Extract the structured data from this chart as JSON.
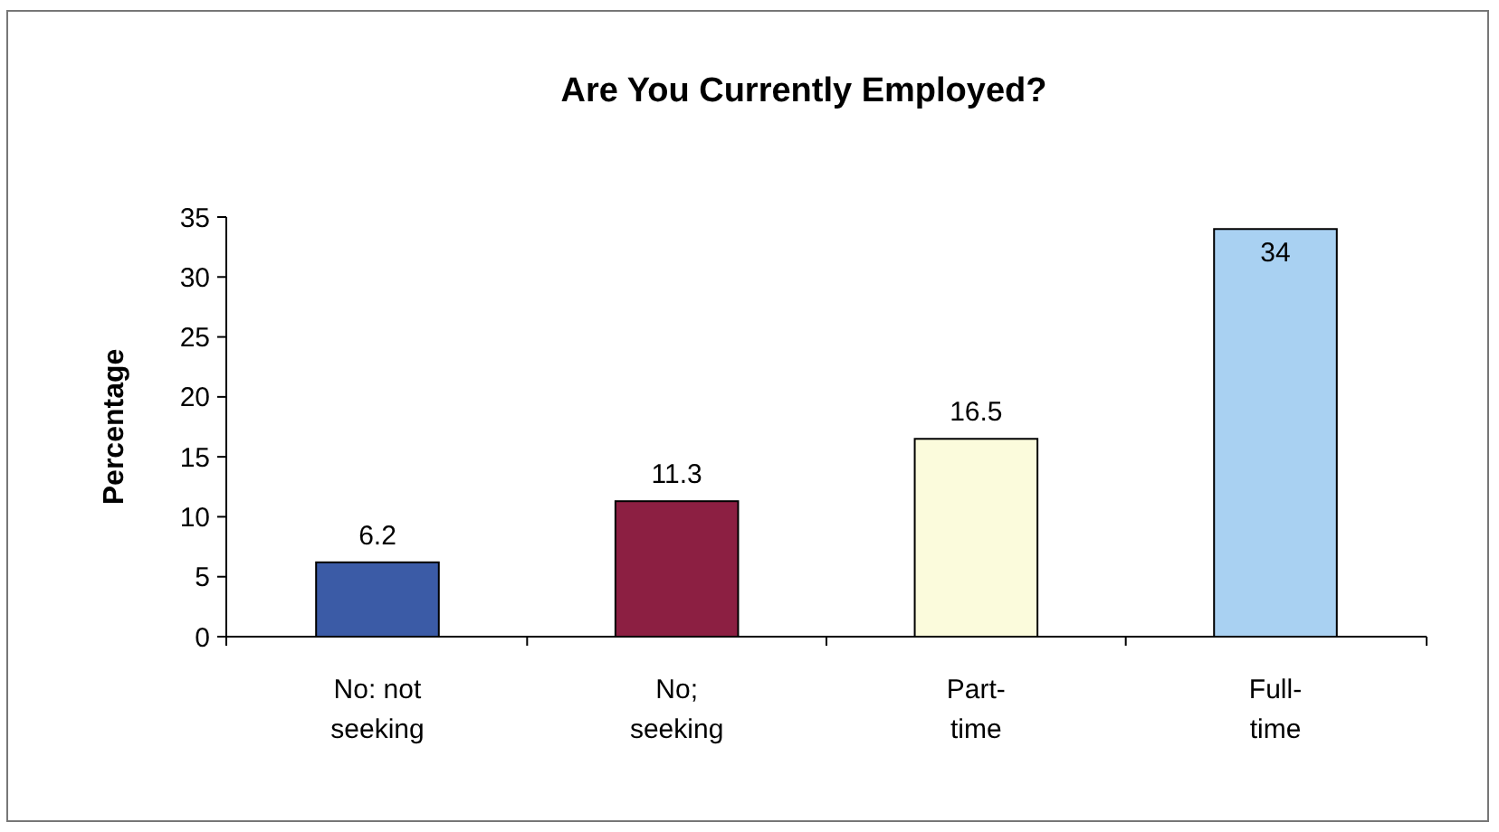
{
  "chart_data": {
    "type": "bar",
    "title": "Are You Currently Employed?",
    "ylabel": "Percentage",
    "categories": [
      "No: not seeking",
      "No; seeking",
      "Part-time",
      "Full-time"
    ],
    "values": [
      6.2,
      11.3,
      16.5,
      34
    ],
    "colors": [
      "#3b5ba6",
      "#8c1f42",
      "#fbfbdc",
      "#a9d1f2"
    ],
    "ylim": [
      0,
      35
    ],
    "yticks": [
      0,
      5,
      10,
      15,
      20,
      25,
      30,
      35
    ],
    "grid": false,
    "data_labels": true
  }
}
